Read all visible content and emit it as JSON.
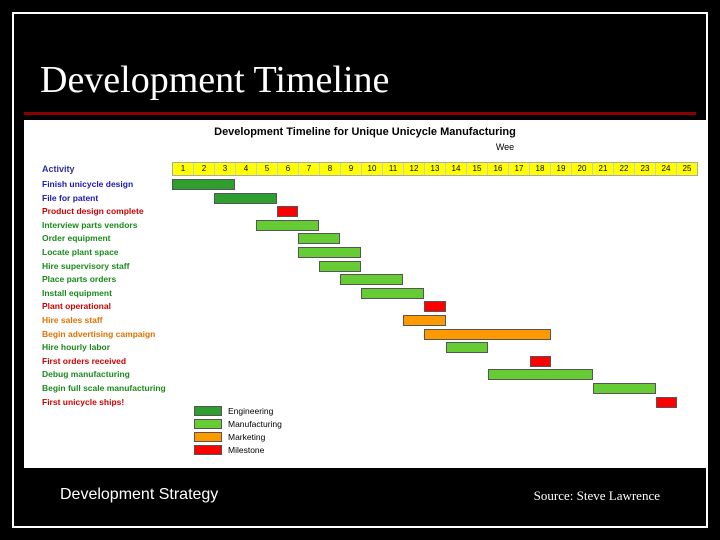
{
  "slide": {
    "title": "Development Timeline",
    "bottom_left": "Development Strategy",
    "bottom_right": "Source: Steve Lawrence",
    "background_color": "#000000",
    "underline_color": "#8b0000",
    "border_color": "#ffffff",
    "title_color": "#ffffff",
    "title_fontsize": 38
  },
  "chart": {
    "type": "gantt",
    "title": "Development Timeline for Unique Unicycle Manufacturing",
    "subtitle": "Wee",
    "background_color": "#ffffff",
    "activity_header": "Activity",
    "activity_header_color": "#3030a0",
    "week_header_bg": "#ffff00",
    "weeks": [
      "1",
      "2",
      "3",
      "4",
      "5",
      "6",
      "7",
      "8",
      "9",
      "10",
      "11",
      "12",
      "13",
      "14",
      "15",
      "16",
      "17",
      "18",
      "19",
      "20",
      "21",
      "22",
      "23",
      "24",
      "25"
    ],
    "num_weeks": 25,
    "label_fontsize": 8.5,
    "colors": {
      "engineering": "#2e9e2e",
      "manufacturing": "#66cc33",
      "marketing": "#ff9900",
      "milestone": "#ff0000",
      "blue_label": "#1818b8",
      "red_label": "#cc0000",
      "green_label": "#1a8a1a",
      "orange_label": "#e07000"
    },
    "activities": [
      {
        "label": "Finish unicycle design",
        "label_color": "#1818b8",
        "start": 1,
        "end": 4,
        "cat": "engineering"
      },
      {
        "label": "File for patent",
        "label_color": "#1818b8",
        "start": 3,
        "end": 6,
        "cat": "engineering"
      },
      {
        "label": "Product design complete",
        "label_color": "#cc0000",
        "start": 6,
        "end": 7,
        "cat": "milestone"
      },
      {
        "label": "Interview parts vendors",
        "label_color": "#1a8a1a",
        "start": 5,
        "end": 8,
        "cat": "manufacturing"
      },
      {
        "label": "Order equipment",
        "label_color": "#1a8a1a",
        "start": 7,
        "end": 9,
        "cat": "manufacturing"
      },
      {
        "label": "Locate plant space",
        "label_color": "#1a8a1a",
        "start": 7,
        "end": 10,
        "cat": "manufacturing"
      },
      {
        "label": "Hire supervisory staff",
        "label_color": "#1a8a1a",
        "start": 8,
        "end": 10,
        "cat": "manufacturing"
      },
      {
        "label": "Place parts orders",
        "label_color": "#1a8a1a",
        "start": 9,
        "end": 12,
        "cat": "manufacturing"
      },
      {
        "label": "Install equipment",
        "label_color": "#1a8a1a",
        "start": 10,
        "end": 13,
        "cat": "manufacturing"
      },
      {
        "label": "Plant operational",
        "label_color": "#cc0000",
        "start": 13,
        "end": 14,
        "cat": "milestone"
      },
      {
        "label": "Hire sales staff",
        "label_color": "#e07000",
        "start": 12,
        "end": 14,
        "cat": "marketing"
      },
      {
        "label": "Begin advertising campaign",
        "label_color": "#e07000",
        "start": 13,
        "end": 19,
        "cat": "marketing"
      },
      {
        "label": "Hire hourly labor",
        "label_color": "#1a8a1a",
        "start": 14,
        "end": 16,
        "cat": "manufacturing"
      },
      {
        "label": "First orders received",
        "label_color": "#cc0000",
        "start": 18,
        "end": 19,
        "cat": "milestone"
      },
      {
        "label": "Debug manufacturing",
        "label_color": "#1a8a1a",
        "start": 16,
        "end": 21,
        "cat": "manufacturing"
      },
      {
        "label": "Begin full scale manufacturing",
        "label_color": "#1a8a1a",
        "start": 21,
        "end": 24,
        "cat": "manufacturing"
      },
      {
        "label": "First unicycle ships!",
        "label_color": "#cc0000",
        "start": 24,
        "end": 25,
        "cat": "milestone"
      }
    ],
    "legend": [
      {
        "label": "Engineering",
        "color": "#2e9e2e"
      },
      {
        "label": "Manufacturing",
        "color": "#66cc33"
      },
      {
        "label": "Marketing",
        "color": "#ff9900"
      },
      {
        "label": "Milestone",
        "color": "#ff0000"
      }
    ]
  }
}
